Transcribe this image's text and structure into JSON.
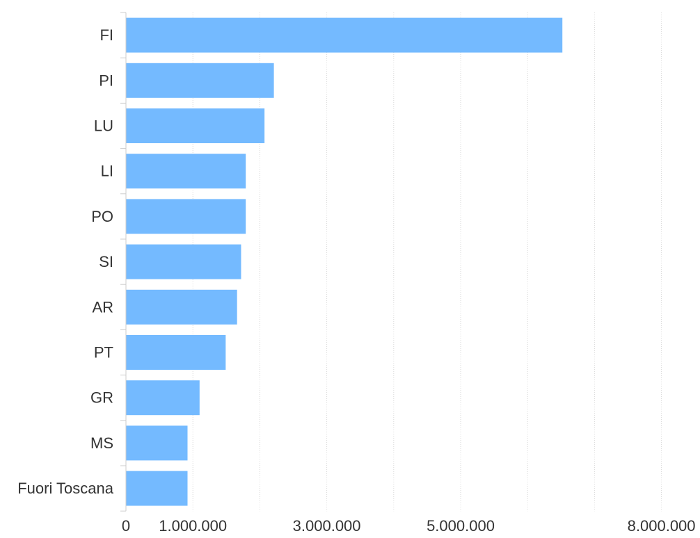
{
  "chart_data": {
    "type": "bar",
    "orientation": "horizontal",
    "categories": [
      "FI",
      "PI",
      "LU",
      "LI",
      "PO",
      "SI",
      "AR",
      "PT",
      "GR",
      "MS",
      "Fuori Toscana"
    ],
    "values": [
      6520000,
      2210000,
      2070000,
      1790000,
      1790000,
      1720000,
      1660000,
      1490000,
      1100000,
      920000,
      920000
    ],
    "x_ticks": [
      {
        "value": 0,
        "label": "0"
      },
      {
        "value": 1000000,
        "label": "1.000.000"
      },
      {
        "value": 3000000,
        "label": "3.000.000"
      },
      {
        "value": 5000000,
        "label": "5.000.000"
      },
      {
        "value": 8000000,
        "label": "8.000.000"
      }
    ],
    "x_gridlines": [
      1000000,
      2000000,
      3000000,
      4000000,
      5000000,
      6000000,
      7000000,
      8000000
    ],
    "xlim": [
      0,
      8000000
    ],
    "grid": true,
    "bar_color": "#74baff",
    "title": "",
    "xlabel": "",
    "ylabel": ""
  }
}
